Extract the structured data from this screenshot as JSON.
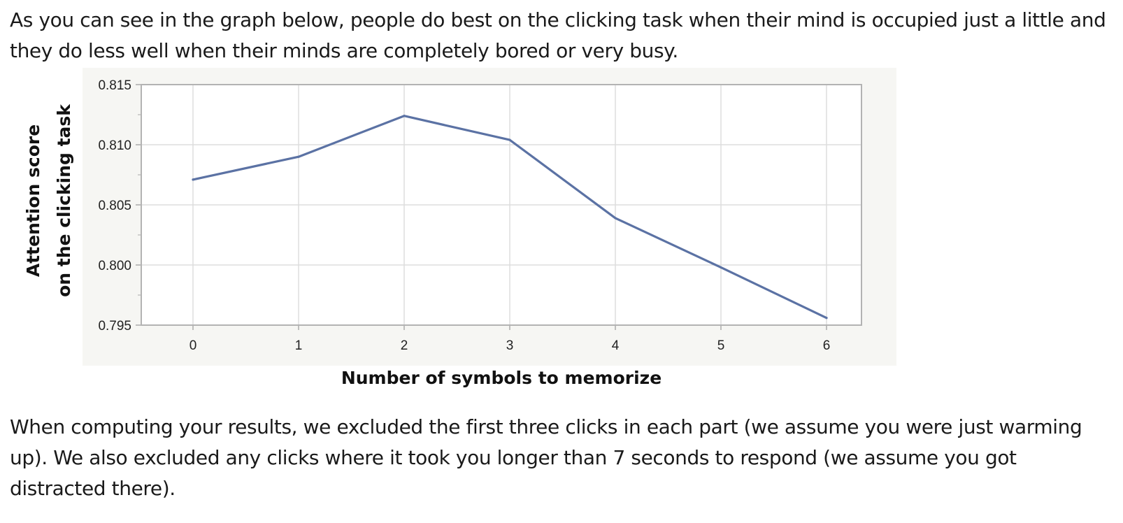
{
  "text": {
    "intro": "As you can see in the graph below, people do best on the clicking task when their mind is occupied just a little and they do less well when their minds are completely bored or very busy.",
    "outro": "When computing your results, we excluded the first three clicks in each part (we assume you were just warming up). We also excluded any clicks where it took you longer than 7 seconds to respond (we assume you got distracted there)."
  },
  "chart_data": {
    "type": "line",
    "title": "",
    "xlabel": "Number of symbols to memorize",
    "ylabel_lines": [
      "Attention score",
      "on the clicking task"
    ],
    "x": [
      0,
      1,
      2,
      3,
      4,
      5,
      6
    ],
    "xticks": [
      "0",
      "1",
      "2",
      "3",
      "4",
      "5",
      "6"
    ],
    "yticks": [
      "0.795",
      "0.800",
      "0.805",
      "0.810",
      "0.815"
    ],
    "ylim": [
      0.795,
      0.815
    ],
    "grid": true,
    "series": [
      {
        "values": [
          0.8071,
          0.809,
          0.8124,
          0.8104,
          0.8039,
          0.7998,
          0.7956
        ]
      }
    ],
    "line_color": "#5b72a4"
  }
}
